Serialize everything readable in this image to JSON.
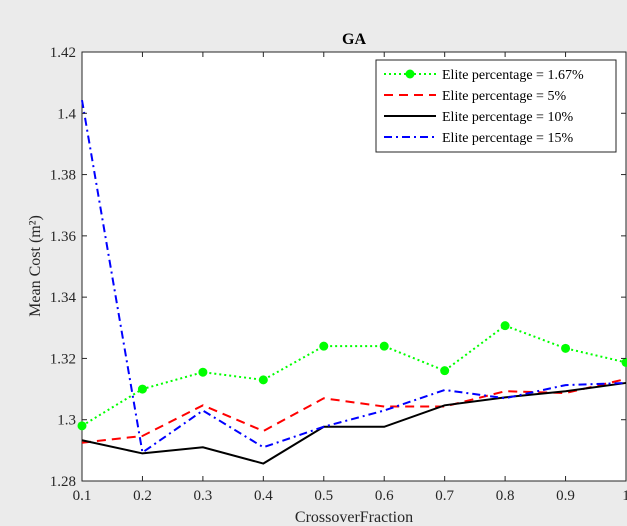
{
  "chart_data": {
    "type": "line",
    "title": "GA",
    "xlabel": "CrossoverFraction",
    "ylabel": "Mean Cost (m²)",
    "x": [
      0.1,
      0.2,
      0.3,
      0.4,
      0.5,
      0.6,
      0.7,
      0.8,
      0.9,
      1.0
    ],
    "xticks": [
      "0.1",
      "0.2",
      "0.3",
      "0.4",
      "0.5",
      "0.6",
      "0.7",
      "0.8",
      "0.9",
      "1"
    ],
    "yticks": [
      "1.28",
      "1.3",
      "1.32",
      "1.34",
      "1.36",
      "1.38",
      "1.4",
      "1.42"
    ],
    "xlim": [
      0.1,
      1.0
    ],
    "ylim": [
      1.28,
      1.42
    ],
    "grid": false,
    "legend_position": "top-right",
    "series": [
      {
        "name": "Elite percentage = 1.67%",
        "color": "#00ff00",
        "line_style": "dotted",
        "marker": "filled-circle",
        "values": [
          1.298,
          1.31,
          1.3155,
          1.313,
          1.324,
          1.324,
          1.316,
          1.3307,
          1.3233,
          1.3187
        ]
      },
      {
        "name": "Elite percentage = 5%",
        "color": "#ff0000",
        "line_style": "dashed",
        "marker": "none",
        "values": [
          1.2925,
          1.2947,
          1.3047,
          1.2963,
          1.307,
          1.3043,
          1.3043,
          1.3093,
          1.3087,
          1.3133
        ]
      },
      {
        "name": "Elite percentage = 10%",
        "color": "#000000",
        "line_style": "solid",
        "marker": "none",
        "values": [
          1.2933,
          1.289,
          1.291,
          1.2857,
          1.2977,
          1.2977,
          1.3047,
          1.3073,
          1.3093,
          1.312
        ]
      },
      {
        "name": "Elite percentage = 15%",
        "color": "#0000ff",
        "line_style": "dash-dot",
        "marker": "none",
        "values": [
          1.4043,
          1.2893,
          1.303,
          1.291,
          1.2977,
          1.303,
          1.3097,
          1.307,
          1.3113,
          1.312
        ]
      }
    ]
  }
}
